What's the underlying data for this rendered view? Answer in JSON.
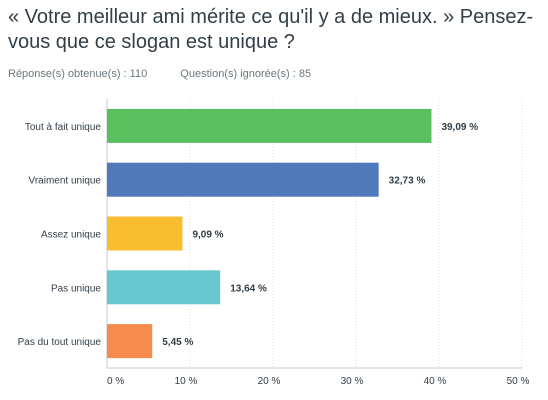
{
  "header": {
    "title": "« Votre meilleur ami mérite ce qu'il y a de mieux. » Pensez-vous que ce slogan est unique ?",
    "responses": "Réponse(s) obtenue(s) : 110",
    "ignored": "Question(s) ignorée(s) : 85"
  },
  "chart_data": {
    "type": "bar",
    "orientation": "horizontal",
    "categories": [
      "Tout à fait unique",
      "Vraiment unique",
      "Assez unique",
      "Pas unique",
      "Pas du tout unique"
    ],
    "values": [
      39.09,
      32.73,
      9.09,
      13.64,
      5.45
    ],
    "value_labels": [
      "39,09 %",
      "32,73 %",
      "9,09 %",
      "13,64 %",
      "5,45 %"
    ],
    "colors": [
      "#5ac05f",
      "#4f79ba",
      "#f9be30",
      "#69c8cf",
      "#f58b4c"
    ],
    "xlim": [
      0,
      50
    ],
    "xticks": [
      0,
      10,
      20,
      30,
      40,
      50
    ],
    "xtick_labels": [
      "0 %",
      "10 %",
      "20 %",
      "30 %",
      "40 %",
      "50 %"
    ],
    "grid": true
  }
}
